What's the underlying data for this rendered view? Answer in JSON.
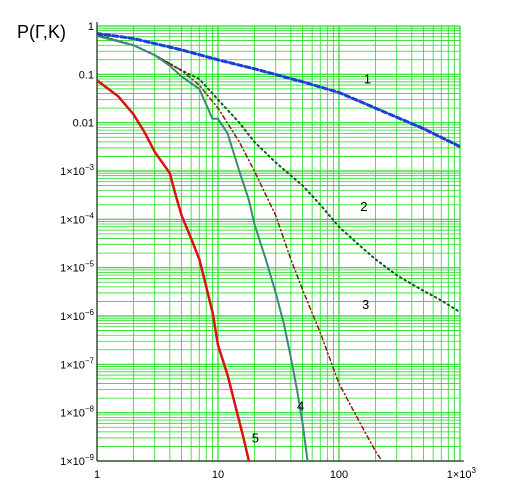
{
  "chart_data": {
    "type": "line",
    "ylabel": "P(Γ,K)",
    "xscale": "log",
    "yscale": "log",
    "xlim": [
      1,
      1000
    ],
    "ylim": [
      1e-09,
      1
    ],
    "grid": true,
    "grid_color": "#22dd22",
    "x_ticks": [
      {
        "value": 1,
        "base": "1",
        "exp": ""
      },
      {
        "value": 10,
        "base": "10",
        "exp": ""
      },
      {
        "value": 100,
        "base": "100",
        "exp": ""
      },
      {
        "value": 1000,
        "base": "1×10",
        "exp": "3"
      }
    ],
    "y_ticks": [
      {
        "value": 1,
        "base": "1",
        "exp": ""
      },
      {
        "value": 0.1,
        "base": "0.1",
        "exp": ""
      },
      {
        "value": 0.01,
        "base": "0.01",
        "exp": ""
      },
      {
        "value": 0.001,
        "base": "1×10",
        "exp": "−3"
      },
      {
        "value": 0.0001,
        "base": "1×10",
        "exp": "−4"
      },
      {
        "value": 1e-05,
        "base": "1×10",
        "exp": "−5"
      },
      {
        "value": 1e-06,
        "base": "1×10",
        "exp": "−6"
      },
      {
        "value": 1e-07,
        "base": "1×10",
        "exp": "−7"
      },
      {
        "value": 1e-08,
        "base": "1×10",
        "exp": "−8"
      },
      {
        "value": 1e-09,
        "base": "1×10",
        "exp": "−9"
      }
    ],
    "series": [
      {
        "label": "1",
        "color": "#1a3fd6",
        "style": "dashed",
        "width": 3,
        "label_at": [
          160,
          0.065
        ],
        "points": [
          [
            1,
            0.7
          ],
          [
            2,
            0.55
          ],
          [
            5,
            0.32
          ],
          [
            10,
            0.2
          ],
          [
            20,
            0.13
          ],
          [
            50,
            0.07
          ],
          [
            100,
            0.042
          ],
          [
            200,
            0.02
          ],
          [
            500,
            0.0075
          ],
          [
            1000,
            0.0032
          ]
        ]
      },
      {
        "label": "2",
        "color": "#0a5a1a",
        "style": "dotted",
        "width": 2,
        "label_at": [
          150,
          0.00015
        ],
        "points": [
          [
            1,
            0.65
          ],
          [
            2,
            0.4
          ],
          [
            3,
            0.25
          ],
          [
            5,
            0.12
          ],
          [
            7,
            0.08
          ],
          [
            10,
            0.03
          ],
          [
            15,
            0.01
          ],
          [
            20,
            0.004
          ],
          [
            30,
            0.0015
          ],
          [
            50,
            0.0005
          ],
          [
            70,
            0.0002
          ],
          [
            100,
            7e-05
          ],
          [
            150,
            2.8e-05
          ],
          [
            200,
            1.5e-05
          ],
          [
            300,
            7e-06
          ],
          [
            500,
            3.3e-06
          ],
          [
            700,
            2.1e-06
          ],
          [
            1000,
            1.2e-06
          ]
        ]
      },
      {
        "label": "3",
        "color": "#8a1a1a",
        "style": "dashdot",
        "width": 1.5,
        "label_at": [
          155,
          1.4e-06
        ],
        "points": [
          [
            1,
            0.65
          ],
          [
            2,
            0.4
          ],
          [
            3,
            0.25
          ],
          [
            5,
            0.12
          ],
          [
            7,
            0.06
          ],
          [
            10,
            0.02
          ],
          [
            15,
            0.004
          ],
          [
            20,
            0.001
          ],
          [
            30,
            0.00012
          ],
          [
            40,
            1.5e-05
          ],
          [
            50,
            3.5e-06
          ],
          [
            70,
            4.5e-07
          ],
          [
            100,
            4e-08
          ],
          [
            150,
            6e-09
          ],
          [
            200,
            1.6e-09
          ],
          [
            300,
            3.5e-10
          ],
          [
            420,
            1e-09
          ]
        ]
      },
      {
        "label": "4",
        "color": "#3a8a78",
        "style": "solid",
        "width": 2,
        "label_at": [
          45,
          1.1e-08
        ],
        "points": [
          [
            1,
            0.62
          ],
          [
            2,
            0.4
          ],
          [
            3,
            0.25
          ],
          [
            4,
            0.15
          ],
          [
            5,
            0.09
          ],
          [
            7,
            0.05
          ],
          [
            9,
            0.012
          ],
          [
            10,
            0.012
          ],
          [
            12,
            0.006
          ],
          [
            15,
            0.001
          ],
          [
            18,
            0.00025
          ],
          [
            20,
            8e-05
          ],
          [
            25,
            1.4e-05
          ],
          [
            30,
            3e-06
          ],
          [
            35,
            7e-07
          ],
          [
            40,
            1.4e-07
          ],
          [
            45,
            3e-08
          ],
          [
            50,
            6e-09
          ],
          [
            55,
            1e-09
          ]
        ]
      },
      {
        "label": "5",
        "color": "#dd1111",
        "style": "solid",
        "width": 2.5,
        "label_at": [
          19,
          2.4e-09
        ],
        "points": [
          [
            1,
            0.075
          ],
          [
            1.5,
            0.035
          ],
          [
            2,
            0.015
          ],
          [
            2.5,
            0.006
          ],
          [
            3,
            0.0025
          ],
          [
            4,
            0.0009
          ],
          [
            4.5,
            0.0003
          ],
          [
            5,
            0.00012
          ],
          [
            6,
            4e-05
          ],
          [
            7,
            1.5e-05
          ],
          [
            8,
            4e-06
          ],
          [
            9,
            1.2e-06
          ],
          [
            10,
            2.5e-07
          ],
          [
            12,
            6e-08
          ],
          [
            14,
            1.3e-08
          ],
          [
            16,
            3.5e-09
          ],
          [
            18,
            1e-09
          ]
        ]
      }
    ]
  }
}
